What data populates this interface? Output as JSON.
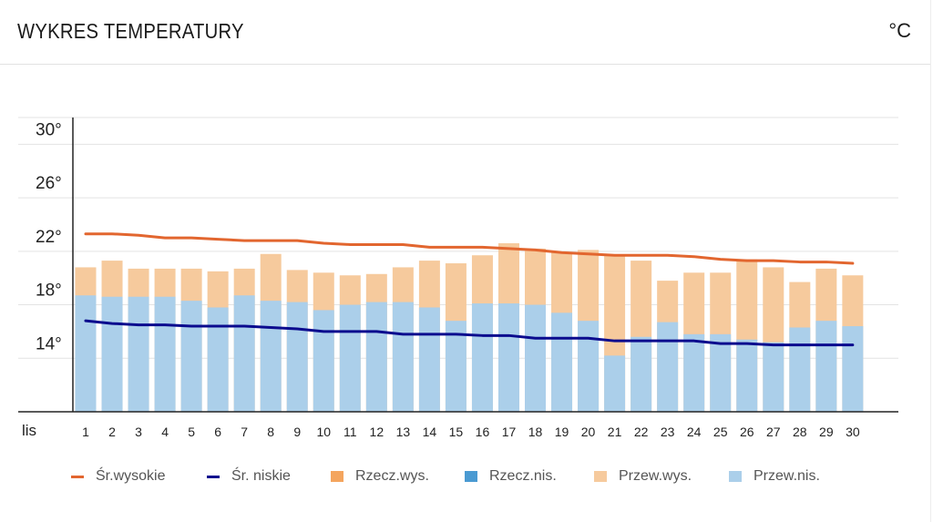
{
  "header": {
    "title": "WYKRES TEMPERATURY",
    "unit": "°C"
  },
  "colors": {
    "avg_high": "#e2662f",
    "avg_low": "#0b0b8e",
    "actual_high": "#f4a55e",
    "actual_low": "#4a9ad2",
    "forecast_high": "#f6ca9d",
    "forecast_low": "#abcfea",
    "grid": "#e3e3e3",
    "axis": "#222222"
  },
  "legend": [
    {
      "label": "Śr.wysokie",
      "type": "line",
      "color_key": "avg_high"
    },
    {
      "label": "Śr. niskie",
      "type": "line",
      "color_key": "avg_low"
    },
    {
      "label": "Rzecz.wys.",
      "type": "box",
      "color_key": "actual_high"
    },
    {
      "label": "Rzecz.nis.",
      "type": "box",
      "color_key": "actual_low"
    },
    {
      "label": "Przew.wys.",
      "type": "box",
      "color_key": "forecast_high"
    },
    {
      "label": "Przew.nis.",
      "type": "box",
      "color_key": "forecast_low"
    }
  ],
  "chart_data": {
    "type": "bar",
    "title": "WYKRES TEMPERATURY",
    "unit": "°C",
    "month_label": "lis",
    "ylim": [
      10,
      32
    ],
    "yticks": [
      14,
      18,
      22,
      26,
      30
    ],
    "ytick_labels": [
      "14°",
      "18°",
      "22°",
      "26°",
      "30°"
    ],
    "grid": true,
    "legend_position": "bottom",
    "categories": [
      "1",
      "2",
      "3",
      "4",
      "5",
      "6",
      "7",
      "8",
      "9",
      "10",
      "11",
      "12",
      "13",
      "14",
      "15",
      "16",
      "17",
      "18",
      "19",
      "20",
      "21",
      "22",
      "23",
      "24",
      "25",
      "26",
      "27",
      "28",
      "29",
      "30"
    ],
    "series": [
      {
        "name": "Przew.wys.",
        "kind": "bar",
        "values": [
          20.8,
          21.3,
          20.7,
          20.7,
          20.7,
          20.5,
          20.7,
          21.8,
          20.6,
          20.4,
          20.2,
          20.3,
          20.8,
          21.3,
          21.1,
          21.7,
          22.6,
          22.2,
          21.9,
          22.1,
          21.7,
          21.3,
          19.8,
          20.4,
          20.4,
          21.4,
          20.8,
          19.7,
          20.7,
          20.2
        ]
      },
      {
        "name": "Przew.nis.",
        "kind": "bar",
        "values": [
          18.7,
          18.6,
          18.6,
          18.6,
          18.3,
          17.8,
          18.7,
          18.3,
          18.2,
          17.6,
          18.0,
          18.2,
          18.2,
          17.8,
          16.8,
          18.1,
          18.1,
          18.0,
          17.4,
          16.8,
          14.2,
          15.6,
          16.7,
          15.8,
          15.8,
          15.4,
          15.2,
          16.3,
          16.8,
          16.4
        ]
      },
      {
        "name": "Śr.wysokie",
        "kind": "line",
        "values": [
          23.3,
          23.3,
          23.2,
          23.0,
          23.0,
          22.9,
          22.8,
          22.8,
          22.8,
          22.6,
          22.5,
          22.5,
          22.5,
          22.3,
          22.3,
          22.3,
          22.2,
          22.1,
          21.9,
          21.8,
          21.7,
          21.7,
          21.7,
          21.6,
          21.4,
          21.3,
          21.3,
          21.2,
          21.2,
          21.1
        ]
      },
      {
        "name": "Śr. niskie",
        "kind": "line",
        "values": [
          16.8,
          16.6,
          16.5,
          16.5,
          16.4,
          16.4,
          16.4,
          16.3,
          16.2,
          16.0,
          16.0,
          16.0,
          15.8,
          15.8,
          15.8,
          15.7,
          15.7,
          15.5,
          15.5,
          15.5,
          15.3,
          15.3,
          15.3,
          15.3,
          15.1,
          15.1,
          15.0,
          15.0,
          15.0,
          15.0
        ]
      }
    ]
  }
}
